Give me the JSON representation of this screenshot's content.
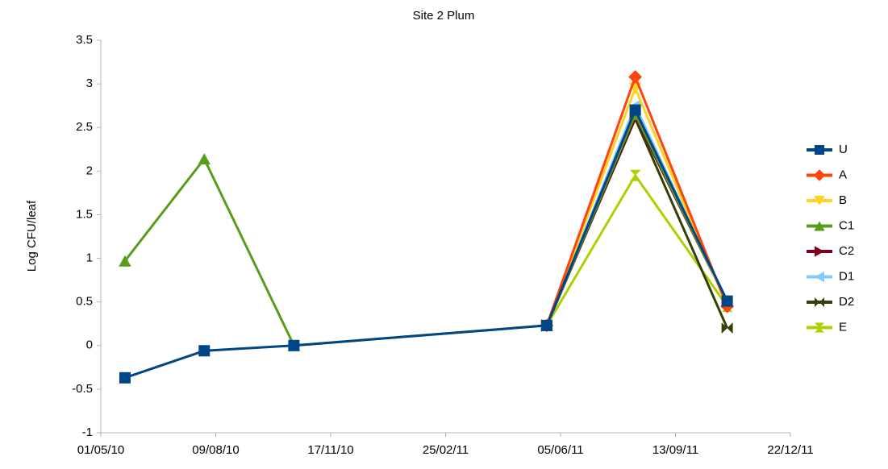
{
  "chart_data": {
    "type": "line",
    "title": "Site 2 Plum",
    "y_label": "Log CFU/leaf",
    "x": [
      "22/05/10",
      "30/07/10",
      "16/10/10",
      "24/05/11",
      "09/08/11",
      "28/10/11"
    ],
    "xlim": [
      "01/05/10",
      "22/12/11"
    ],
    "xticks": [
      "01/05/10",
      "09/08/10",
      "17/11/10",
      "25/02/11",
      "05/06/11",
      "13/09/11",
      "22/12/11"
    ],
    "ylim": [
      -1,
      3.5
    ],
    "yticks": [
      -1,
      -0.5,
      0,
      0.5,
      1,
      1.5,
      2,
      2.5,
      3,
      3.5
    ],
    "grid": false,
    "legend": "right",
    "series": [
      {
        "name": "U",
        "color": "#004586",
        "marker": "square",
        "values": [
          -0.37,
          -0.06,
          0,
          0.23,
          2.7,
          0.51
        ]
      },
      {
        "name": "A",
        "color": "#ff420e",
        "marker": "diamond",
        "values": [
          null,
          null,
          null,
          0.23,
          3.08,
          0.45
        ]
      },
      {
        "name": "B",
        "color": "#ffd320",
        "marker": "triangle-down",
        "values": [
          null,
          null,
          null,
          0.23,
          2.95,
          0.45
        ]
      },
      {
        "name": "C1",
        "color": "#579d1c",
        "marker": "triangle-up",
        "values": [
          0.97,
          2.14,
          0,
          0.23,
          2.65,
          0.5
        ]
      },
      {
        "name": "C2",
        "color": "#7e0021",
        "marker": "triangle-right",
        "values": [
          null,
          null,
          null,
          0.23,
          2.62,
          0.5
        ]
      },
      {
        "name": "D1",
        "color": "#83caff",
        "marker": "triangle-left",
        "values": [
          null,
          null,
          null,
          0.23,
          2.75,
          0.5
        ]
      },
      {
        "name": "D2",
        "color": "#314004",
        "marker": "bowtie",
        "values": [
          null,
          null,
          null,
          0.23,
          2.6,
          0.2
        ]
      },
      {
        "name": "E",
        "color": "#aecf00",
        "marker": "hourglass",
        "values": [
          null,
          null,
          null,
          0.23,
          1.95,
          0.45
        ]
      }
    ]
  }
}
